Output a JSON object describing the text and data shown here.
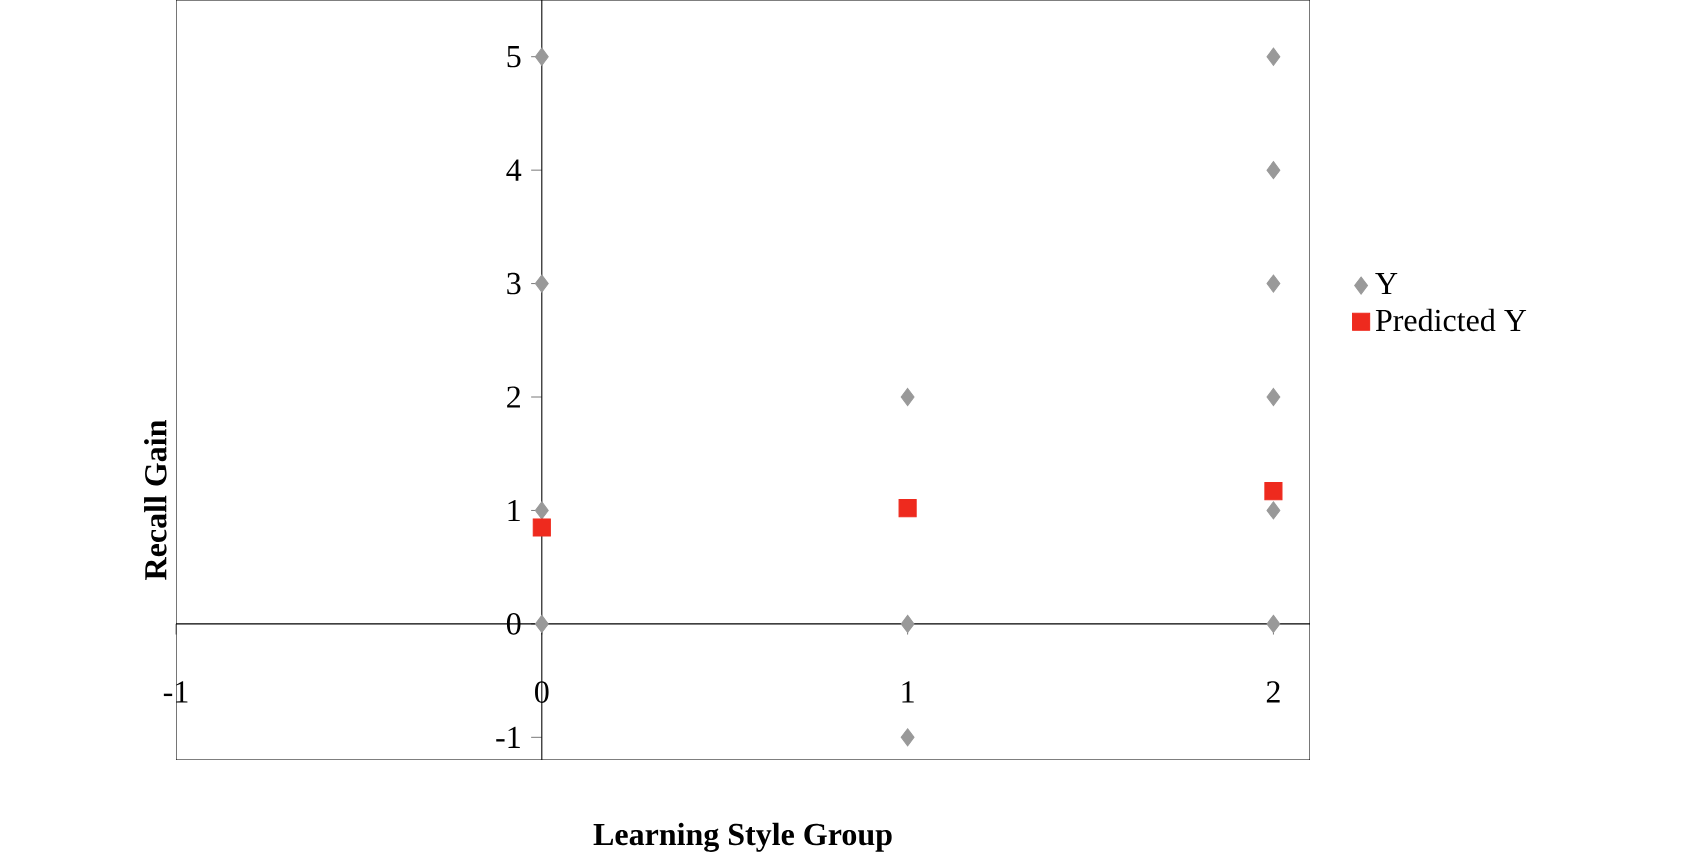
{
  "chart_data": {
    "type": "scatter",
    "xlabel": "Learning Style Group",
    "ylabel": "Recall Gain",
    "xlim": [
      -1,
      2.1
    ],
    "ylim": [
      -1.2,
      5.5
    ],
    "xticks": [
      -1,
      0,
      1,
      2
    ],
    "yticks": [
      -1,
      0,
      1,
      2,
      3,
      4,
      5
    ],
    "legend": "right",
    "grid": false,
    "series": [
      {
        "name": "Y",
        "color": "#999999",
        "marker": "diamond",
        "x": [
          0,
          0,
          0,
          0,
          1,
          1,
          1,
          2,
          2,
          2,
          2,
          2,
          2
        ],
        "values": [
          5,
          3,
          1,
          0,
          2,
          0,
          -1,
          5,
          4,
          3,
          2,
          1,
          0
        ]
      },
      {
        "name": "Predicted Y",
        "color": "#ee2a1e",
        "marker": "square",
        "x": [
          0,
          1,
          2
        ],
        "values": [
          0.85,
          1.02,
          1.17
        ]
      }
    ]
  }
}
